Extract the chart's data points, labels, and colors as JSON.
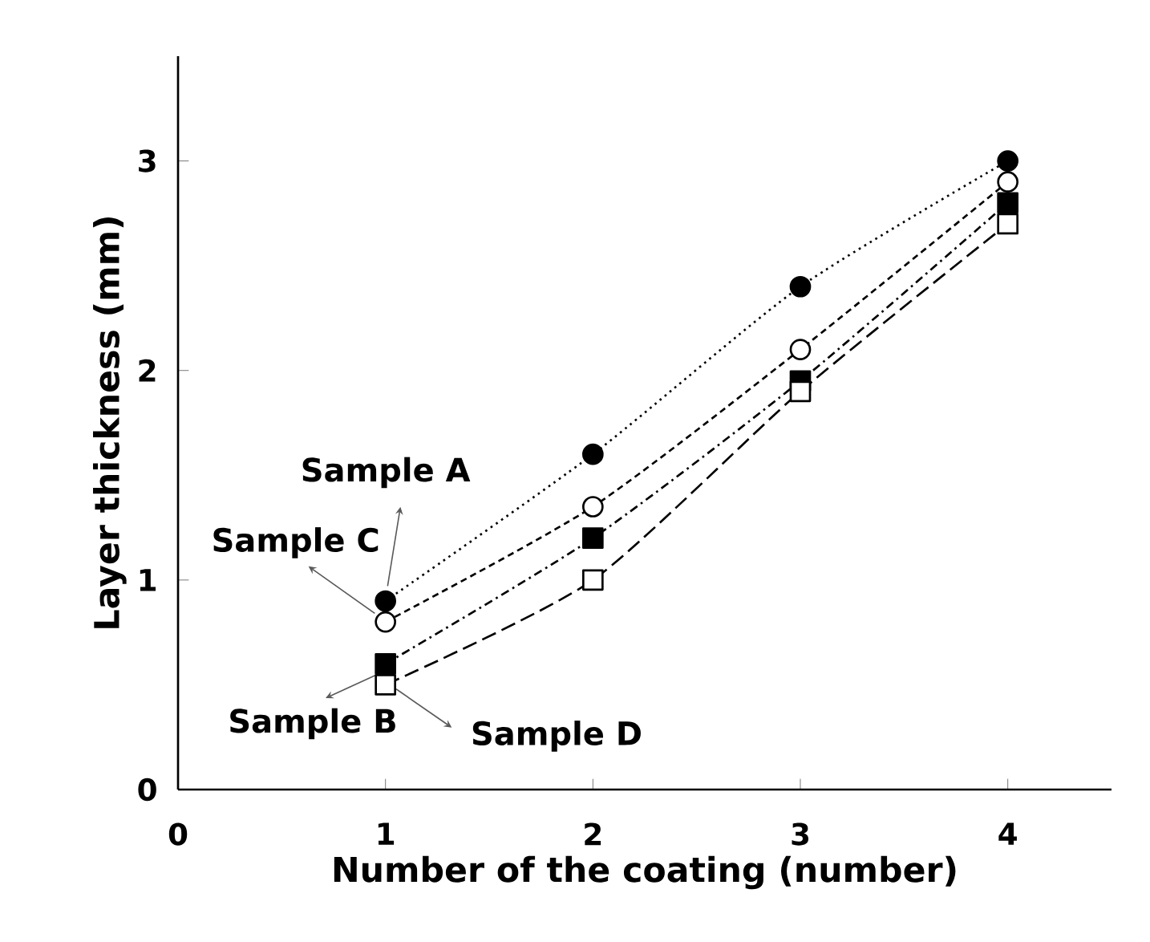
{
  "chart_data": {
    "type": "line",
    "xlabel": "Number of the coating (number)",
    "ylabel": "Layer thickness (mm)",
    "x": [
      1,
      2,
      3,
      4
    ],
    "xlim": [
      0,
      4.5
    ],
    "ylim": [
      0,
      3.5
    ],
    "xticks": [
      0,
      1,
      2,
      3,
      4
    ],
    "yticks": [
      0,
      1,
      2,
      3
    ],
    "series": [
      {
        "name": "Sample A",
        "color": "#000000",
        "marker": "circle",
        "line_style": "dotted",
        "values": [
          0.9,
          1.6,
          2.4,
          3.0
        ]
      },
      {
        "name": "Sample C",
        "color": "#000000",
        "marker": "circle",
        "line_style": "dashed",
        "values": [
          0.8,
          1.35,
          2.1,
          2.9
        ]
      },
      {
        "name": "Sample B",
        "color": "#000000",
        "marker": "square",
        "line_style": "dashdot",
        "values": [
          0.6,
          1.2,
          1.95,
          2.8
        ]
      },
      {
        "name": "Sample D",
        "color": "#000000",
        "marker": "square",
        "line_style": "longdashed",
        "values": [
          0.5,
          1.0,
          1.9,
          2.7
        ]
      }
    ]
  }
}
